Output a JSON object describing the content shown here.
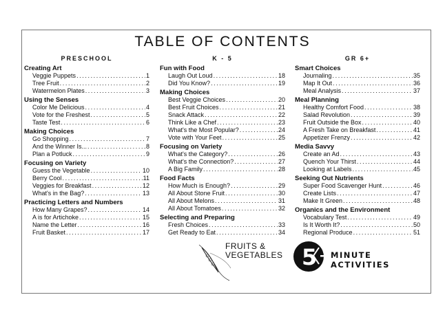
{
  "title": "TABLE OF CONTENTS",
  "columns": [
    {
      "heading": "PRESCHOOL",
      "sections": [
        {
          "name": "Creating Art",
          "items": [
            [
              "Veggie Puppets",
              "1"
            ],
            [
              "Tree Fruit",
              "2"
            ],
            [
              "Watermelon Plates",
              "3"
            ]
          ]
        },
        {
          "name": "Using the Senses",
          "items": [
            [
              "Color Me Delicious",
              "4"
            ],
            [
              "Vote for the Freshest",
              "5"
            ],
            [
              "Taste Test",
              "6"
            ]
          ]
        },
        {
          "name": "Making Choices",
          "items": [
            [
              "Go Shopping",
              "7"
            ],
            [
              "And the Winner Is...",
              "8"
            ],
            [
              "Plan a Potluck",
              "9"
            ]
          ]
        },
        {
          "name": "Focusing on Variety",
          "items": [
            [
              "Guess the Vegetable",
              "10"
            ],
            [
              "Berry Cool",
              "11"
            ],
            [
              "Veggies for Breakfast",
              "12"
            ],
            [
              "What's in the Bag?",
              "13"
            ]
          ]
        },
        {
          "name": "Practicing Letters and Numbers",
          "items": [
            [
              "How Many Grapes?",
              "14"
            ],
            [
              "A is for Artichoke",
              "15"
            ],
            [
              "Name the Letter",
              "16"
            ],
            [
              "Fruit Basket",
              "17"
            ]
          ]
        }
      ]
    },
    {
      "heading": "K - 5",
      "sections": [
        {
          "name": "Fun with Food",
          "items": [
            [
              "Laugh Out Loud",
              "18"
            ],
            [
              "Did You Know?",
              "19"
            ]
          ]
        },
        {
          "name": "Making Choices",
          "items": [
            [
              "Best Veggie Choices",
              "20"
            ],
            [
              "Best Fruit Choices",
              "21"
            ],
            [
              "Snack Attack",
              "22"
            ],
            [
              "Think Like a Chef",
              "23"
            ],
            [
              "What's the Most Popular?",
              "24"
            ],
            [
              "Vote with Your Feet",
              "25"
            ]
          ]
        },
        {
          "name": "Focusing on Variety",
          "items": [
            [
              "What's the Category?",
              "26"
            ],
            [
              "What's the Connection?",
              "27"
            ],
            [
              "A Big Family",
              "28"
            ]
          ]
        },
        {
          "name": "Food Facts",
          "items": [
            [
              "How Much is Enough?",
              "29"
            ],
            [
              "All About Stone Fruit",
              "30"
            ],
            [
              "All About Melons",
              "31"
            ],
            [
              "All About Tomatoes",
              "32"
            ]
          ]
        },
        {
          "name": "Selecting and Preparing",
          "items": [
            [
              "Fresh Choices",
              "33"
            ],
            [
              "Get Ready to Eat",
              "34"
            ]
          ]
        }
      ]
    },
    {
      "heading": "GR 6+",
      "sections": [
        {
          "name": "Smart Choices",
          "items": [
            [
              "Journaling",
              "35"
            ],
            [
              "Map It Out",
              "36"
            ],
            [
              "Meal Analysis",
              "37"
            ]
          ]
        },
        {
          "name": "Meal Planning",
          "items": [
            [
              "Healthy Comfort Food",
              "38"
            ],
            [
              "Salad Revolution",
              "39"
            ],
            [
              "Fruit Outside the Box",
              "40"
            ],
            [
              "A Fresh Take on Breakfast",
              "41"
            ],
            [
              "Appetizer Frenzy",
              "42"
            ]
          ]
        },
        {
          "name": "Media Savvy",
          "items": [
            [
              "Create an Ad",
              "43"
            ],
            [
              "Quench Your Thirst",
              "44"
            ],
            [
              "Looking at Labels",
              "45"
            ]
          ]
        },
        {
          "name": "Seeking Out Nutrients",
          "items": [
            [
              "Super Food Scavenger Hunt",
              "46"
            ],
            [
              "Create Lists",
              "47"
            ],
            [
              "Make It Green",
              "48"
            ]
          ]
        },
        {
          "name": "Organics and the Environment",
          "items": [
            [
              "Vocabulary Test",
              "49"
            ],
            [
              "Is It Worth It?",
              "50"
            ],
            [
              "Regional Produce",
              "51"
            ]
          ]
        }
      ]
    }
  ],
  "logo": {
    "line1": "FRUITS &",
    "line2": "VEGETABLES",
    "number": "5",
    "tagline": "MINUTE ACTIVITIES"
  }
}
